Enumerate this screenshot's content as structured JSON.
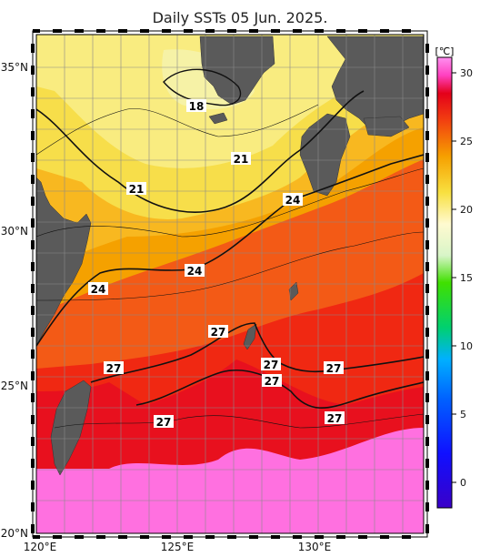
{
  "title": "Daily SSTs 05 Jun. 2025.",
  "colorbar": {
    "unit": "[℃]",
    "ticks": [
      "0",
      "5",
      "10",
      "15",
      "20",
      "25",
      "30"
    ],
    "range": [
      -2,
      31
    ]
  },
  "axes": {
    "lat_labels": [
      "35°N",
      "30°N",
      "25°N",
      "20°N"
    ],
    "lon_labels": [
      "120°E",
      "125°E",
      "130°E"
    ]
  },
  "contour_labels": [
    "18",
    "21",
    "21",
    "24",
    "24",
    "24",
    "27",
    "27",
    "27",
    "27",
    "27",
    "27",
    "27"
  ],
  "colors": {
    "land": "#5a5a5a",
    "sst_18": "#f6f2a6",
    "sst_21": "#f7de4a",
    "sst_24": "#f5a100",
    "sst_26": "#f35a16",
    "sst_28": "#e8101e",
    "sst_30": "#ff70e0"
  }
}
